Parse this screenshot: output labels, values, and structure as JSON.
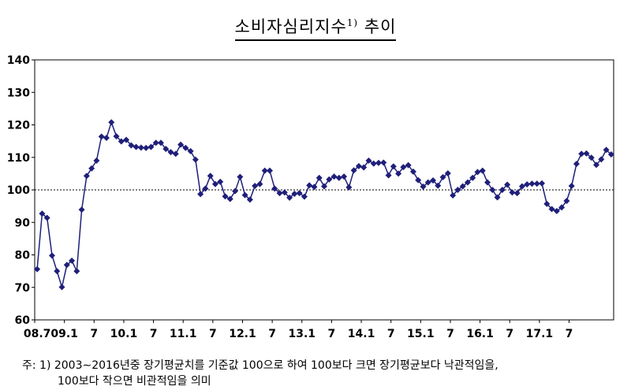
{
  "title": {
    "main": "소비자심리지수",
    "sup": "1)",
    "suffix": " 추이"
  },
  "footnote": {
    "line1": "주: 1) 2003∼2016년중 장기평균치를 기준값 100으로 하여 100보다 크면 장기평균보다 낙관적임을,",
    "line2": "100보다 작으면 비관적임을 의미"
  },
  "chart_data": {
    "type": "line",
    "title": "소비자심리지수1) 추이",
    "marker": "diamond",
    "color": "#1f1f7a",
    "ylim": [
      60,
      140
    ],
    "yticks": [
      60,
      70,
      80,
      90,
      100,
      110,
      120,
      130,
      140
    ],
    "reference_line": {
      "y": 100,
      "style": "dotted"
    },
    "xticklabels": [
      "08.7",
      "09.1",
      "7",
      "10.1",
      "7",
      "11.1",
      "7",
      "12.1",
      "7",
      "13.1",
      "7",
      "14.1",
      "7",
      "15.1",
      "7",
      "16.1",
      "7",
      "17.1",
      "7"
    ],
    "x_start": "2008-07",
    "x_end": "2017-12",
    "values": [
      75.6,
      92.7,
      91.4,
      79.8,
      75.0,
      70.1,
      76.9,
      78.2,
      75.0,
      93.9,
      104.3,
      106.6,
      109.0,
      116.4,
      116.0,
      120.8,
      116.5,
      114.9,
      115.4,
      113.7,
      113.2,
      113.0,
      112.9,
      113.2,
      114.5,
      114.5,
      112.6,
      111.6,
      111.1,
      113.9,
      112.9,
      111.9,
      109.3,
      98.7,
      100.4,
      104.3,
      101.8,
      102.5,
      98.0,
      97.2,
      99.6,
      104.0,
      98.4,
      97.0,
      101.2,
      101.8,
      105.9,
      105.9,
      100.4,
      99.0,
      99.2,
      97.6,
      98.8,
      99.0,
      97.9,
      101.4,
      100.9,
      103.7,
      101.1,
      103.2,
      104.1,
      103.7,
      104.1,
      100.8,
      106.0,
      107.3,
      106.9,
      109.0,
      108.1,
      108.3,
      108.4,
      104.5,
      107.2,
      105.0,
      107.0,
      107.6,
      105.6,
      103.0,
      101.0,
      102.3,
      102.9,
      101.3,
      103.9,
      105.1,
      98.3,
      100.0,
      101.1,
      102.3,
      103.7,
      105.5,
      105.9,
      102.3,
      100.0,
      97.7,
      100.0,
      101.6,
      99.2,
      99.0,
      101.1,
      101.7,
      101.9,
      101.9,
      102.0,
      95.7,
      94.1,
      93.5,
      94.6,
      96.6,
      101.2,
      108.0,
      111.1,
      111.2,
      109.9,
      107.7,
      109.4,
      112.3,
      110.9
    ]
  }
}
